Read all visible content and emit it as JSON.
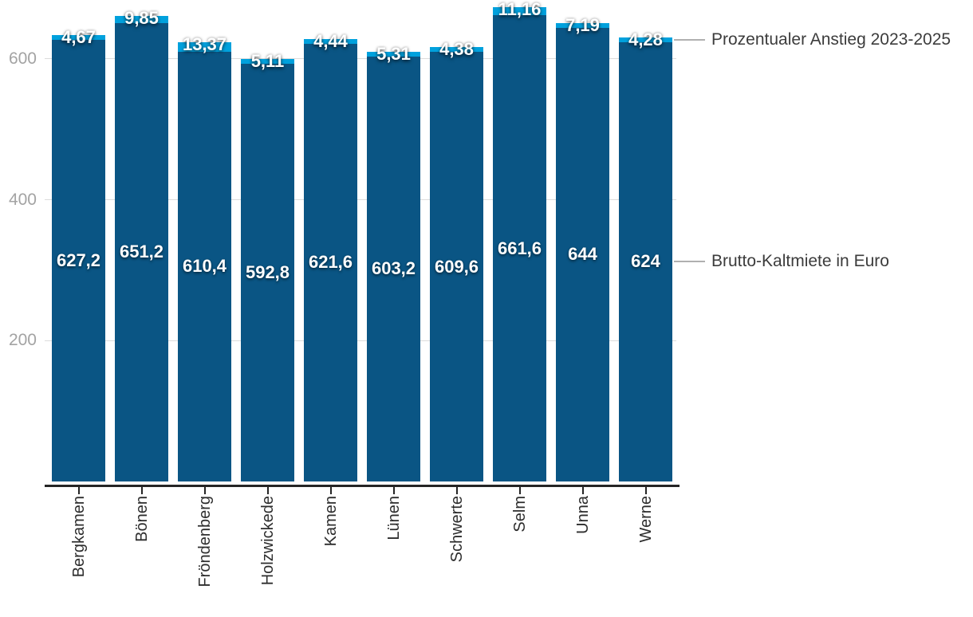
{
  "chart_data": {
    "type": "bar",
    "stacked": true,
    "orientation": "vertical",
    "title": "",
    "categories": [
      "Bergkamen",
      "Bönen",
      "Fröndenberg",
      "Holzwickede",
      "Kamen",
      "Lünen",
      "Schwerte",
      "Selm",
      "Unna",
      "Werne"
    ],
    "series": [
      {
        "name": "Brutto-Kaltmiete in Euro",
        "color": "#0a5584",
        "values": [
          627.2,
          651.2,
          610.4,
          592.8,
          621.6,
          603.2,
          609.6,
          661.6,
          644,
          624
        ],
        "labels": [
          "627,2",
          "651,2",
          "610,4",
          "592,8",
          "621,6",
          "603,2",
          "609,6",
          "661,6",
          "644",
          "624"
        ]
      },
      {
        "name": "Prozentualer Anstieg 2023-2025",
        "color": "#00a1dd",
        "values": [
          4.67,
          9.85,
          13.37,
          5.11,
          4.44,
          5.31,
          4.38,
          11.16,
          7.19,
          4.28
        ],
        "labels": [
          "4,67",
          "9,85",
          "13,37",
          "5,11",
          "4,44",
          "5,31",
          "4,38",
          "11,16",
          "7,19",
          "4,28"
        ]
      }
    ],
    "y_ticks": [
      200,
      400,
      600
    ],
    "y_tick_labels": [
      "200",
      "400",
      "600"
    ],
    "ylim": [
      0,
      690
    ],
    "grid": "horizontal",
    "x_label_rotation": -90,
    "legend_position": "right-annotations",
    "value_labels": "white-on-bar"
  },
  "colors": {
    "background": "#ffffff",
    "bar_primary": "#0a5584",
    "bar_secondary": "#00a1dd",
    "grid_line": "#dcdcdc",
    "axis_line": "#252525",
    "y_tick_text": "#a3a3a3",
    "x_tick_text": "#2d2d2d",
    "annotation_text": "#3c3c3c",
    "leader_line": "#b0b0b0",
    "value_text": "#ffffff"
  }
}
